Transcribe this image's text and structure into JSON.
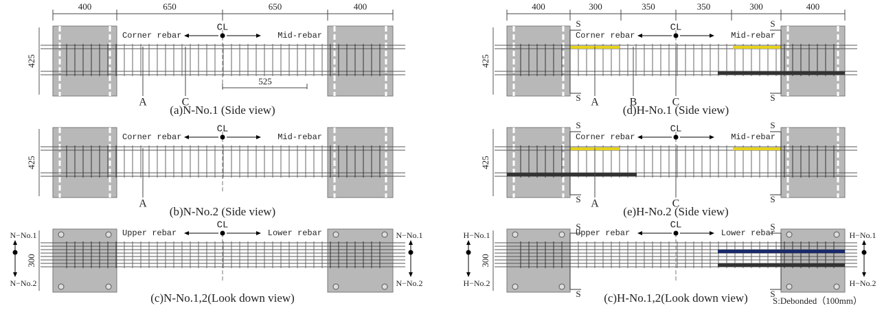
{
  "left": {
    "dimensions": [
      "400",
      "650",
      "650",
      "400"
    ],
    "panels": [
      {
        "caption": "(a)N-No.1 (Side view)",
        "height": "425",
        "cl": "CL",
        "left_label": "Corner rebar",
        "right_label": "Mid-rebar",
        "marks": [
          "A",
          "C"
        ],
        "span": "525"
      },
      {
        "caption": "(b)N-No.2 (Side view)",
        "height": "425",
        "cl": "CL",
        "left_label": "Corner rebar",
        "right_label": "Mid-rebar",
        "marks": [
          "A"
        ]
      },
      {
        "caption": "(c)N-No.1,2(Look down view)",
        "height": "300",
        "cl": "CL",
        "left_label": "Upper rebar",
        "right_label": "Lower rebar",
        "ends": [
          "N−No.1",
          "N−No.2"
        ]
      }
    ]
  },
  "right": {
    "dimensions": [
      "400",
      "300",
      "350",
      "350",
      "300",
      "400"
    ],
    "panels": [
      {
        "caption": "(d)H-No.1 (Side view)",
        "height": "425",
        "cl": "CL",
        "left_label": "Corner rebar",
        "right_label": "Mid-rebar",
        "marks": [
          "A",
          "B",
          "C"
        ],
        "s": "S"
      },
      {
        "caption": "(e)H-No.2 (Side view)",
        "height": "425",
        "cl": "CL",
        "left_label": "Corner rebar",
        "right_label": "Mid-rebar",
        "marks": [
          "A",
          "C"
        ],
        "s": "S"
      },
      {
        "caption": "(c)H-No.1,2(Look down view)",
        "height": "300",
        "cl": "CL",
        "left_label": "Upper rebar",
        "right_label": "Lower rebar",
        "ends": [
          "H−No.1",
          "H−No.2"
        ],
        "s": "S"
      }
    ],
    "legend": "S:Debonded（100mm）"
  }
}
